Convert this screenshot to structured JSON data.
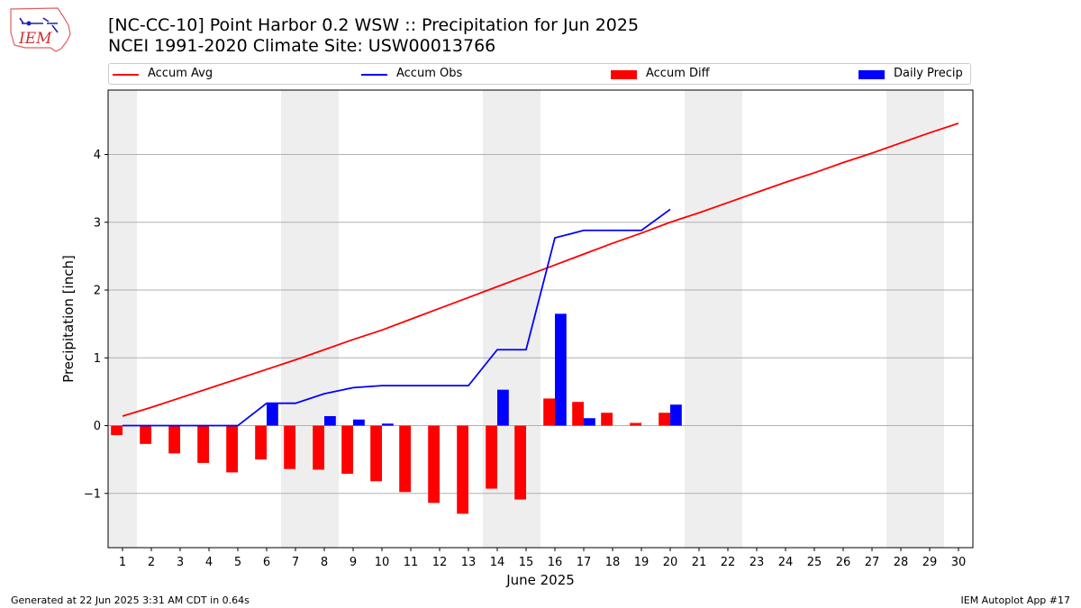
{
  "header": {
    "title_line1": "[NC-CC-10] Point Harbor 0.2 WSW :: Precipitation for Jun 2025",
    "title_line2": "NCEI 1991-2020 Climate Site: USW00013766",
    "logo_text": "IEM"
  },
  "footer": {
    "generated": "Generated at 22 Jun 2025 3:31 AM CDT in 0.64s",
    "app": "IEM Autoplot App #17"
  },
  "colors": {
    "avg": "#ff0000",
    "obs": "#0000ff",
    "diff": "#ff0000",
    "daily": "#0000ff",
    "weekend_shade": "#eeeeee",
    "grid": "#b0b0b0"
  },
  "chart_data": {
    "type": "bar",
    "xlabel": "June 2025",
    "ylabel": "Precipitation [inch]",
    "xlim": [
      0.5,
      30.5
    ],
    "ylim": [
      -1.8,
      4.95
    ],
    "yticks": [
      -1,
      0,
      1,
      2,
      3,
      4
    ],
    "ytick_labels": [
      "−1",
      "0",
      "1",
      "2",
      "3",
      "4"
    ],
    "grid": "horizontal",
    "legend_position": "top",
    "days": [
      1,
      2,
      3,
      4,
      5,
      6,
      7,
      8,
      9,
      10,
      11,
      12,
      13,
      14,
      15,
      16,
      17,
      18,
      19,
      20,
      21,
      22,
      23,
      24,
      25,
      26,
      27,
      28,
      29,
      30
    ],
    "shaded_days": [
      1,
      7,
      8,
      14,
      15,
      21,
      22,
      28,
      29
    ],
    "series": [
      {
        "name": "Accum Avg",
        "kind": "line",
        "values": [
          0.14,
          0.27,
          0.41,
          0.55,
          0.69,
          0.83,
          0.97,
          1.12,
          1.27,
          1.41,
          1.57,
          1.73,
          1.89,
          2.05,
          2.21,
          2.37,
          2.53,
          2.69,
          2.84,
          3.0,
          3.14,
          3.29,
          3.44,
          3.59,
          3.73,
          3.88,
          4.02,
          4.17,
          4.32,
          4.46
        ]
      },
      {
        "name": "Accum Obs",
        "kind": "line",
        "values": [
          0.0,
          0.0,
          0.0,
          0.0,
          0.0,
          0.33,
          0.33,
          0.47,
          0.56,
          0.59,
          0.59,
          0.59,
          0.59,
          1.12,
          1.12,
          2.77,
          2.88,
          2.88,
          2.88,
          3.19
        ]
      },
      {
        "name": "Accum Diff",
        "kind": "bar",
        "values": [
          -0.14,
          -0.27,
          -0.41,
          -0.55,
          -0.69,
          -0.5,
          -0.64,
          -0.65,
          -0.71,
          -0.82,
          -0.98,
          -1.14,
          -1.3,
          -0.93,
          -1.09,
          0.4,
          0.35,
          0.19,
          0.04,
          0.19
        ]
      },
      {
        "name": "Daily Precip",
        "kind": "bar",
        "values": [
          0.0,
          0.0,
          0.0,
          0.0,
          0.0,
          0.33,
          0.0,
          0.14,
          0.09,
          0.03,
          0.0,
          0.0,
          0.0,
          0.53,
          0.0,
          1.65,
          0.11,
          0.0,
          0.0,
          0.31
        ]
      }
    ]
  }
}
